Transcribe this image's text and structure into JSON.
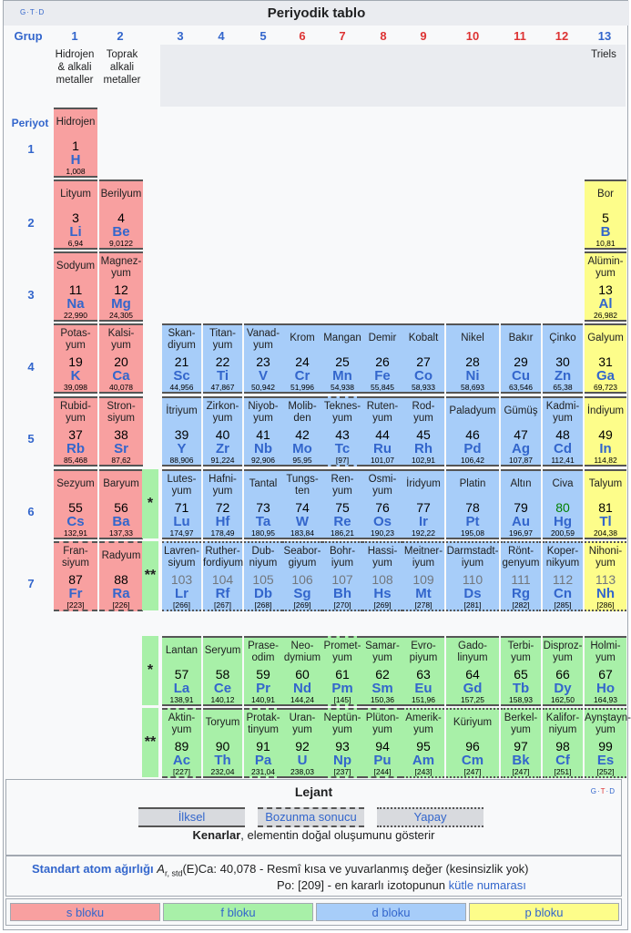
{
  "title": "Periyodik tablo",
  "gtd_left": "G·T·D",
  "gtd_right": [
    "G",
    "·",
    "T",
    "·",
    "D"
  ],
  "grup_label": "Grup",
  "periyot_label": "Periyot",
  "groups": [
    "1",
    "2",
    "3",
    "4",
    "5",
    "6",
    "7",
    "8",
    "9",
    "10",
    "11",
    "12",
    "13"
  ],
  "group_names": {
    "g1": "Hidrojen & alkali metaller",
    "g2": "Toprak alkali metaller",
    "g13": "Triels"
  },
  "periods": [
    "1",
    "2",
    "3",
    "4",
    "5",
    "6",
    "7"
  ],
  "elements": {
    "H": {
      "name": "Hidrojen",
      "num": "1",
      "sym": "H",
      "wt": "1,008"
    },
    "Li": {
      "name": "Lityum",
      "num": "3",
      "sym": "Li",
      "wt": "6,94"
    },
    "Be": {
      "name": "Berilyum",
      "num": "4",
      "sym": "Be",
      "wt": "9,0122"
    },
    "B": {
      "name": "Bor",
      "num": "5",
      "sym": "B",
      "wt": "10,81"
    },
    "Na": {
      "name": "Sodyum",
      "num": "11",
      "sym": "Na",
      "wt": "22,990"
    },
    "Mg": {
      "name": "Magnez-yum",
      "num": "12",
      "sym": "Mg",
      "wt": "24,305"
    },
    "Al": {
      "name": "Alümin-yum",
      "num": "13",
      "sym": "Al",
      "wt": "26,982"
    },
    "K": {
      "name": "Potas-yum",
      "num": "19",
      "sym": "K",
      "wt": "39,098"
    },
    "Ca": {
      "name": "Kalsi-yum",
      "num": "20",
      "sym": "Ca",
      "wt": "40,078"
    },
    "Sc": {
      "name": "Skan-diyum",
      "num": "21",
      "sym": "Sc",
      "wt": "44,956"
    },
    "Ti": {
      "name": "Titan-yum",
      "num": "22",
      "sym": "Ti",
      "wt": "47,867"
    },
    "V": {
      "name": "Vanad-yum",
      "num": "23",
      "sym": "V",
      "wt": "50,942"
    },
    "Cr": {
      "name": "Krom",
      "num": "24",
      "sym": "Cr",
      "wt": "51,996"
    },
    "Mn": {
      "name": "Mangan",
      "num": "25",
      "sym": "Mn",
      "wt": "54,938"
    },
    "Fe": {
      "name": "Demir",
      "num": "26",
      "sym": "Fe",
      "wt": "55,845"
    },
    "Co": {
      "name": "Kobalt",
      "num": "27",
      "sym": "Co",
      "wt": "58,933"
    },
    "Ni": {
      "name": "Nikel",
      "num": "28",
      "sym": "Ni",
      "wt": "58,693"
    },
    "Cu": {
      "name": "Bakır",
      "num": "29",
      "sym": "Cu",
      "wt": "63,546"
    },
    "Zn": {
      "name": "Çinko",
      "num": "30",
      "sym": "Zn",
      "wt": "65,38"
    },
    "Ga": {
      "name": "Galyum",
      "num": "31",
      "sym": "Ga",
      "wt": "69,723"
    },
    "Rb": {
      "name": "Rubid-yum",
      "num": "37",
      "sym": "Rb",
      "wt": "85,468"
    },
    "Sr": {
      "name": "Stron-siyum",
      "num": "38",
      "sym": "Sr",
      "wt": "87,62"
    },
    "Y": {
      "name": "İtriyum",
      "num": "39",
      "sym": "Y",
      "wt": "88,906"
    },
    "Zr": {
      "name": "Zirkon-yum",
      "num": "40",
      "sym": "Zr",
      "wt": "91,224"
    },
    "Nb": {
      "name": "Niyob-yum",
      "num": "41",
      "sym": "Nb",
      "wt": "92,906"
    },
    "Mo": {
      "name": "Molib-den",
      "num": "42",
      "sym": "Mo",
      "wt": "95,95"
    },
    "Tc": {
      "name": "Teknes-yum",
      "num": "43",
      "sym": "Tc",
      "wt": "[97]"
    },
    "Ru": {
      "name": "Ruten-yum",
      "num": "44",
      "sym": "Ru",
      "wt": "101,07"
    },
    "Rh": {
      "name": "Rod-yum",
      "num": "45",
      "sym": "Rh",
      "wt": "102,91"
    },
    "Pd": {
      "name": "Paladyum",
      "num": "46",
      "sym": "Pd",
      "wt": "106,42"
    },
    "Ag": {
      "name": "Gümüş",
      "num": "47",
      "sym": "Ag",
      "wt": "107,87"
    },
    "Cd": {
      "name": "Kadmi-yum",
      "num": "48",
      "sym": "Cd",
      "wt": "112,41"
    },
    "In": {
      "name": "İndiyum",
      "num": "49",
      "sym": "In",
      "wt": "114,82"
    },
    "Cs": {
      "name": "Sezyum",
      "num": "55",
      "sym": "Cs",
      "wt": "132,91"
    },
    "Ba": {
      "name": "Baryum",
      "num": "56",
      "sym": "Ba",
      "wt": "137,33"
    },
    "Lu": {
      "name": "Lutes-yum",
      "num": "71",
      "sym": "Lu",
      "wt": "174,97"
    },
    "Hf": {
      "name": "Hafni-yum",
      "num": "72",
      "sym": "Hf",
      "wt": "178,49"
    },
    "Ta": {
      "name": "Tantal",
      "num": "73",
      "sym": "Ta",
      "wt": "180,95"
    },
    "W": {
      "name": "Tungs-ten",
      "num": "74",
      "sym": "W",
      "wt": "183,84"
    },
    "Re": {
      "name": "Ren-yum",
      "num": "75",
      "sym": "Re",
      "wt": "186,21"
    },
    "Os": {
      "name": "Osmi-yum",
      "num": "76",
      "sym": "Os",
      "wt": "190,23"
    },
    "Ir": {
      "name": "İridyum",
      "num": "77",
      "sym": "Ir",
      "wt": "192,22"
    },
    "Pt": {
      "name": "Platin",
      "num": "78",
      "sym": "Pt",
      "wt": "195,08"
    },
    "Au": {
      "name": "Altın",
      "num": "79",
      "sym": "Au",
      "wt": "196,97"
    },
    "Hg": {
      "name": "Civa",
      "num": "80",
      "sym": "Hg",
      "wt": "200,59"
    },
    "Tl": {
      "name": "Talyum",
      "num": "81",
      "sym": "Tl",
      "wt": "204,38"
    },
    "Fr": {
      "name": "Fran-siyum",
      "num": "87",
      "sym": "Fr",
      "wt": "[223]"
    },
    "Ra": {
      "name": "Radyum",
      "num": "88",
      "sym": "Ra",
      "wt": "[226]"
    },
    "Lr": {
      "name": "Lavren-siyum",
      "num": "103",
      "sym": "Lr",
      "wt": "[266]"
    },
    "Rf": {
      "name": "Ruther-fordiyum",
      "num": "104",
      "sym": "Rf",
      "wt": "[267]"
    },
    "Db": {
      "name": "Dub-niyum",
      "num": "105",
      "sym": "Db",
      "wt": "[268]"
    },
    "Sg": {
      "name": "Seabor-giyum",
      "num": "106",
      "sym": "Sg",
      "wt": "[269]"
    },
    "Bh": {
      "name": "Bohr-iyum",
      "num": "107",
      "sym": "Bh",
      "wt": "[270]"
    },
    "Hs": {
      "name": "Hassi-yum",
      "num": "108",
      "sym": "Hs",
      "wt": "[269]"
    },
    "Mt": {
      "name": "Meitner-iyum",
      "num": "109",
      "sym": "Mt",
      "wt": "[278]"
    },
    "Ds": {
      "name": "Darmstadt-iyum",
      "num": "110",
      "sym": "Ds",
      "wt": "[281]"
    },
    "Rg": {
      "name": "Rönt-genyum",
      "num": "111",
      "sym": "Rg",
      "wt": "[282]"
    },
    "Cn": {
      "name": "Koper-nikyum",
      "num": "112",
      "sym": "Cn",
      "wt": "[285]"
    },
    "Nh": {
      "name": "Nihoni-yum",
      "num": "113",
      "sym": "Nh",
      "wt": "[286]"
    },
    "La": {
      "name": "Lantan",
      "num": "57",
      "sym": "La",
      "wt": "138,91"
    },
    "Ce": {
      "name": "Seryum",
      "num": "58",
      "sym": "Ce",
      "wt": "140,12"
    },
    "Pr": {
      "name": "Prase-odim",
      "num": "59",
      "sym": "Pr",
      "wt": "140,91"
    },
    "Nd": {
      "name": "Neo-dymium",
      "num": "60",
      "sym": "Nd",
      "wt": "144,24"
    },
    "Pm": {
      "name": "Promet-yum",
      "num": "61",
      "sym": "Pm",
      "wt": "[145]"
    },
    "Sm": {
      "name": "Samar-yum",
      "num": "62",
      "sym": "Sm",
      "wt": "150,36"
    },
    "Eu": {
      "name": "Evro-piyum",
      "num": "63",
      "sym": "Eu",
      "wt": "151,96"
    },
    "Gd": {
      "name": "Gado-linyum",
      "num": "64",
      "sym": "Gd",
      "wt": "157,25"
    },
    "Tb": {
      "name": "Terbi-yum",
      "num": "65",
      "sym": "Tb",
      "wt": "158,93"
    },
    "Dy": {
      "name": "Disproz-yum",
      "num": "66",
      "sym": "Dy",
      "wt": "162,50"
    },
    "Ho": {
      "name": "Holmi-yum",
      "num": "67",
      "sym": "Ho",
      "wt": "164,93"
    },
    "Ac": {
      "name": "Aktin-yum",
      "num": "89",
      "sym": "Ac",
      "wt": "[227]"
    },
    "Th": {
      "name": "Toryum",
      "num": "90",
      "sym": "Th",
      "wt": "232,04"
    },
    "Pa": {
      "name": "Protak-tinyum",
      "num": "91",
      "sym": "Pa",
      "wt": "231,04"
    },
    "U": {
      "name": "Uran-yum",
      "num": "92",
      "sym": "U",
      "wt": "238,03"
    },
    "Np": {
      "name": "Neptün-yum",
      "num": "93",
      "sym": "Np",
      "wt": "[237]"
    },
    "Pu": {
      "name": "Plüton-yum",
      "num": "94",
      "sym": "Pu",
      "wt": "[244]"
    },
    "Am": {
      "name": "Amerik-yum",
      "num": "95",
      "sym": "Am",
      "wt": "[243]"
    },
    "Cm": {
      "name": "Küriyum",
      "num": "96",
      "sym": "Cm",
      "wt": "[247]"
    },
    "Bk": {
      "name": "Berkel-yum",
      "num": "97",
      "sym": "Bk",
      "wt": "[247]"
    },
    "Cf": {
      "name": "Kalifor-niyum",
      "num": "98",
      "sym": "Cf",
      "wt": "[251]"
    },
    "Es": {
      "name": "Aynştayn-yum",
      "num": "99",
      "sym": "Es",
      "wt": "[252]"
    }
  },
  "markers": {
    "lanthanide": "*",
    "actinide": "**"
  },
  "legend": {
    "title": "Lejant",
    "primordial": "İlksel",
    "decay": "Bozunma sonucu",
    "synthetic": "Yapay",
    "border_bold": "Kenarlar",
    "border_text": ", elementin doğal oluşumunu gösterir"
  },
  "atomic": {
    "label": "Standart atom ağırlığı",
    "symbol": "A",
    "subscript": "r, std",
    "example_a": "(E)Ca: 40,078 - Resmî kısa ve yuvarlanmış değer (kesinsizlik yok)",
    "example_b": "Po: [209] - en kararlı izotopunun ",
    "example_link": "kütle numarası"
  },
  "blocks": {
    "s": "s bloku",
    "f": "f bloku",
    "d": "d bloku",
    "p": "p bloku"
  },
  "colors": {
    "s": "#f8a0a0",
    "f": "#a8f0a8",
    "d": "#a7cdf9",
    "p": "#fdfd8a",
    "link": "#3366cc",
    "red_header": "#dd3333",
    "mercury_text": "#008000"
  }
}
